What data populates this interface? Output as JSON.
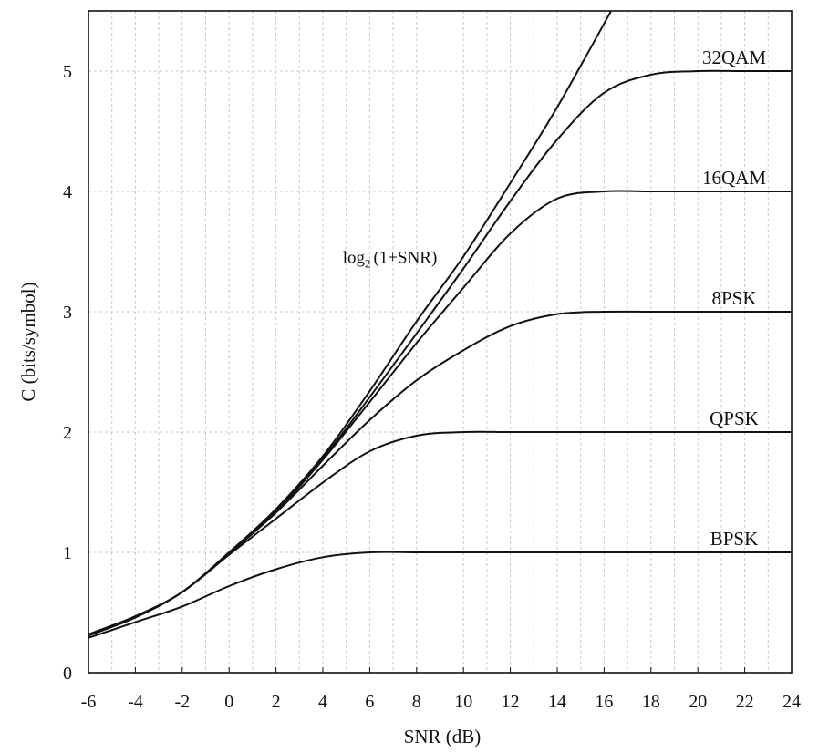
{
  "chart_data": {
    "type": "line",
    "title": "",
    "xlabel": "SNR (dB)",
    "ylabel": "C (bits/symbol)",
    "xlim": [
      -6,
      24
    ],
    "ylim": [
      0,
      5.5
    ],
    "x_ticks": [
      -6,
      -4,
      -2,
      0,
      2,
      4,
      6,
      8,
      10,
      12,
      14,
      16,
      18,
      20,
      22,
      24
    ],
    "y_ticks": [
      0,
      1,
      2,
      3,
      4,
      5
    ],
    "grid": "dashed",
    "colors": {
      "line": "#111111",
      "grid": "#c8c8c8",
      "axis": "#111111"
    },
    "annotation": {
      "text": "log",
      "subscript": "2",
      "rest": "(1+SNR)",
      "x": 5.0,
      "y": 3.45
    },
    "series": [
      {
        "key": "shannon",
        "x": [
          -6,
          -4,
          -2,
          0,
          2,
          4,
          6,
          8,
          10,
          12,
          14,
          16.3
        ],
        "y": [
          0.32,
          0.47,
          0.67,
          1.0,
          1.36,
          1.8,
          2.34,
          2.92,
          3.46,
          4.07,
          4.7,
          5.5
        ]
      },
      {
        "key": "bpsk",
        "name": "BPSK",
        "x": [
          -6,
          -4,
          -2,
          0,
          2,
          4,
          6,
          8,
          10,
          12,
          14,
          16,
          18,
          20,
          22,
          24
        ],
        "y": [
          0.29,
          0.42,
          0.55,
          0.72,
          0.86,
          0.96,
          1.0,
          1.0,
          1.0,
          1.0,
          1.0,
          1.0,
          1.0,
          1.0,
          1.0,
          1.0
        ]
      },
      {
        "key": "qpsk",
        "name": "QPSK",
        "x": [
          -6,
          -4,
          -2,
          0,
          2,
          4,
          6,
          8,
          10,
          12,
          14,
          16,
          18,
          20,
          22,
          24
        ],
        "y": [
          0.31,
          0.46,
          0.67,
          0.98,
          1.28,
          1.58,
          1.84,
          1.97,
          2.0,
          2.0,
          2.0,
          2.0,
          2.0,
          2.0,
          2.0,
          2.0
        ]
      },
      {
        "key": "8psk",
        "name": "8PSK",
        "x": [
          -6,
          -4,
          -2,
          0,
          2,
          4,
          6,
          8,
          10,
          12,
          14,
          16,
          18,
          20,
          22,
          24
        ],
        "y": [
          0.31,
          0.46,
          0.67,
          0.99,
          1.33,
          1.72,
          2.1,
          2.43,
          2.68,
          2.88,
          2.98,
          3.0,
          3.0,
          3.0,
          3.0,
          3.0
        ]
      },
      {
        "key": "16qam",
        "name": "16QAM",
        "x": [
          -6,
          -4,
          -2,
          0,
          2,
          4,
          6,
          8,
          10,
          12,
          14,
          16,
          18,
          20,
          22,
          24
        ],
        "y": [
          0.31,
          0.46,
          0.67,
          0.99,
          1.34,
          1.77,
          2.25,
          2.74,
          3.2,
          3.65,
          3.94,
          4.0,
          4.0,
          4.0,
          4.0,
          4.0
        ]
      },
      {
        "key": "32qam",
        "name": "32QAM",
        "x": [
          -6,
          -4,
          -2,
          0,
          2,
          4,
          6,
          8,
          10,
          12,
          14,
          16,
          18,
          20,
          22,
          24
        ],
        "y": [
          0.31,
          0.46,
          0.67,
          1.0,
          1.35,
          1.78,
          2.29,
          2.82,
          3.36,
          3.92,
          4.43,
          4.82,
          4.97,
          5.0,
          5.0,
          5.0
        ]
      }
    ]
  }
}
